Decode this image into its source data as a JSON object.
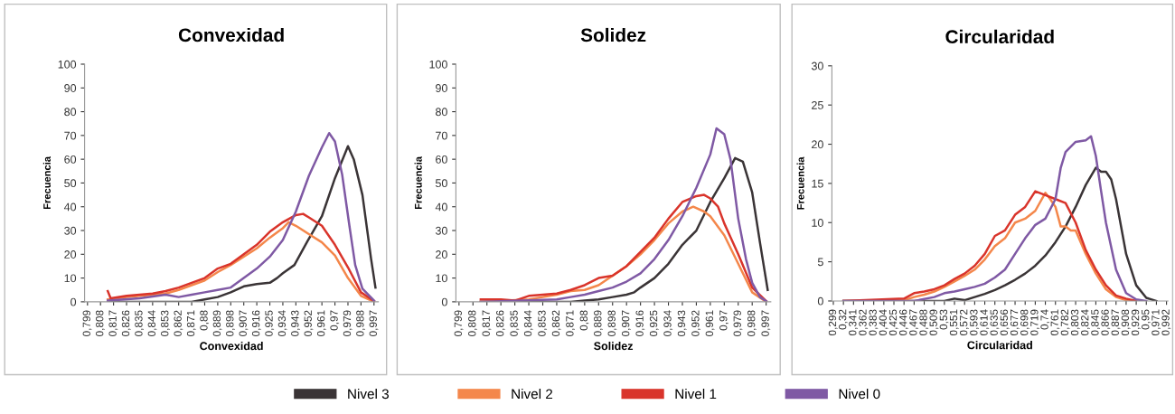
{
  "chart_data": [
    {
      "type": "line",
      "title": "Convexidad",
      "xlabel": "Convexidad",
      "ylabel": "Frecuencia",
      "legend": "bottom",
      "grid": false,
      "xlim": [
        0.797,
        1.0
      ],
      "ylim": [
        0,
        100
      ],
      "yticks": [
        0,
        10,
        20,
        30,
        40,
        50,
        60,
        70,
        80,
        90,
        100
      ],
      "xticks": [
        {
          "value": 0.799,
          "label": "0,799"
        },
        {
          "value": 0.808,
          "label": "0,808"
        },
        {
          "value": 0.817,
          "label": "0,817"
        },
        {
          "value": 0.826,
          "label": "0,826"
        },
        {
          "value": 0.835,
          "label": "0,835"
        },
        {
          "value": 0.844,
          "label": "0,844"
        },
        {
          "value": 0.853,
          "label": "0,853"
        },
        {
          "value": 0.862,
          "label": "0,862"
        },
        {
          "value": 0.871,
          "label": "0,871"
        },
        {
          "value": 0.88,
          "label": "0,88"
        },
        {
          "value": 0.889,
          "label": "0,889"
        },
        {
          "value": 0.898,
          "label": "0,898"
        },
        {
          "value": 0.907,
          "label": "0,907"
        },
        {
          "value": 0.916,
          "label": "0,916"
        },
        {
          "value": 0.925,
          "label": "0,925"
        },
        {
          "value": 0.934,
          "label": "0,934"
        },
        {
          "value": 0.943,
          "label": "0,943"
        },
        {
          "value": 0.952,
          "label": "0,952"
        },
        {
          "value": 0.961,
          "label": "0,961"
        },
        {
          "value": 0.97,
          "label": "0,97"
        },
        {
          "value": 0.979,
          "label": "0,979"
        },
        {
          "value": 0.988,
          "label": "0,988"
        },
        {
          "value": 0.997,
          "label": "0,997"
        }
      ],
      "series": [
        {
          "name": "Nivel 3",
          "color": "#3a3436",
          "x": [
            0.813,
            0.871,
            0.88,
            0.889,
            0.898,
            0.907,
            0.916,
            0.925,
            0.93,
            0.934,
            0.942,
            0.951,
            0.961,
            0.97,
            0.979,
            0.983,
            0.989,
            0.995,
            0.998
          ],
          "values": [
            0,
            0,
            1,
            2,
            4,
            6.5,
            7.5,
            8,
            10,
            12,
            15.5,
            25.5,
            36,
            52,
            65.5,
            60,
            45,
            18,
            6
          ]
        },
        {
          "name": "Nivel 2",
          "color": "#f4874b",
          "x": [
            0.813,
            0.826,
            0.835,
            0.844,
            0.853,
            0.862,
            0.871,
            0.88,
            0.889,
            0.898,
            0.907,
            0.916,
            0.925,
            0.934,
            0.938,
            0.943,
            0.952,
            0.961,
            0.97,
            0.979,
            0.988,
            0.997
          ],
          "values": [
            1,
            2,
            2.5,
            3,
            3.5,
            5,
            7,
            9,
            12.5,
            15.5,
            19,
            22.5,
            27,
            31,
            33.5,
            32,
            28.5,
            25,
            19.5,
            10,
            2.5,
            0
          ]
        },
        {
          "name": "Nivel 1",
          "color": "#d9342b",
          "x": [
            0.813,
            0.815,
            0.826,
            0.835,
            0.844,
            0.853,
            0.862,
            0.871,
            0.88,
            0.889,
            0.898,
            0.907,
            0.916,
            0.925,
            0.934,
            0.943,
            0.948,
            0.952,
            0.961,
            0.97,
            0.979,
            0.988,
            0.997
          ],
          "values": [
            4.5,
            1.5,
            2.5,
            3,
            3.5,
            4.5,
            6,
            8,
            10,
            14,
            16,
            20,
            24,
            29.5,
            33.5,
            36.5,
            37,
            35.5,
            32,
            24,
            14.5,
            4,
            0.3
          ]
        },
        {
          "name": "Nivel 0",
          "color": "#7f59a4",
          "x": [
            0.813,
            0.835,
            0.853,
            0.862,
            0.871,
            0.88,
            0.889,
            0.898,
            0.907,
            0.916,
            0.925,
            0.934,
            0.943,
            0.952,
            0.961,
            0.966,
            0.97,
            0.975,
            0.98,
            0.984,
            0.989,
            0.997
          ],
          "values": [
            0.5,
            1.5,
            3,
            2,
            3,
            4,
            5,
            6,
            10,
            14,
            19,
            26,
            38,
            53,
            65,
            71,
            67.5,
            53.5,
            32,
            15.5,
            5.5,
            0.5
          ]
        }
      ]
    },
    {
      "type": "line",
      "title": "Solidez",
      "xlabel": "Solidez",
      "ylabel": "Frecuencia",
      "grid": false,
      "xlim": [
        0.797,
        1.0
      ],
      "ylim": [
        0,
        100
      ],
      "yticks": [
        0,
        10,
        20,
        30,
        40,
        50,
        60,
        70,
        80,
        90,
        100
      ],
      "xticks": [
        {
          "value": 0.799,
          "label": "0,799"
        },
        {
          "value": 0.808,
          "label": "0,808"
        },
        {
          "value": 0.817,
          "label": "0,817"
        },
        {
          "value": 0.826,
          "label": "0,826"
        },
        {
          "value": 0.835,
          "label": "0,835"
        },
        {
          "value": 0.844,
          "label": "0,844"
        },
        {
          "value": 0.853,
          "label": "0,853"
        },
        {
          "value": 0.862,
          "label": "0,862"
        },
        {
          "value": 0.871,
          "label": "0,871"
        },
        {
          "value": 0.88,
          "label": "0,88"
        },
        {
          "value": 0.889,
          "label": "0,889"
        },
        {
          "value": 0.898,
          "label": "0,898"
        },
        {
          "value": 0.907,
          "label": "0,907"
        },
        {
          "value": 0.916,
          "label": "0,916"
        },
        {
          "value": 0.925,
          "label": "0,925"
        },
        {
          "value": 0.934,
          "label": "0,934"
        },
        {
          "value": 0.943,
          "label": "0,943"
        },
        {
          "value": 0.952,
          "label": "0,952"
        },
        {
          "value": 0.961,
          "label": "0,961"
        },
        {
          "value": 0.97,
          "label": "0,97"
        },
        {
          "value": 0.979,
          "label": "0,979"
        },
        {
          "value": 0.988,
          "label": "0,988"
        },
        {
          "value": 0.997,
          "label": "0,997"
        }
      ],
      "series": [
        {
          "color": "#3a3436",
          "x": [
            0.813,
            0.871,
            0.88,
            0.889,
            0.898,
            0.907,
            0.912,
            0.916,
            0.925,
            0.934,
            0.943,
            0.952,
            0.961,
            0.97,
            0.977,
            0.982,
            0.988,
            0.993,
            0.998
          ],
          "values": [
            0,
            0,
            0.5,
            1,
            2,
            3,
            4,
            6,
            10,
            16,
            24,
            30,
            42,
            52,
            60.5,
            59,
            46,
            25,
            5
          ]
        },
        {
          "color": "#f4874b",
          "x": [
            0.813,
            0.844,
            0.853,
            0.862,
            0.871,
            0.88,
            0.889,
            0.898,
            0.907,
            0.916,
            0.925,
            0.934,
            0.943,
            0.95,
            0.957,
            0.961,
            0.97,
            0.979,
            0.988,
            0.997
          ],
          "values": [
            0,
            1,
            2,
            3,
            4.5,
            5,
            7,
            11,
            15,
            20,
            26,
            33,
            38,
            40,
            38,
            36,
            28,
            16,
            4,
            0
          ]
        },
        {
          "color": "#d9342b",
          "x": [
            0.813,
            0.826,
            0.835,
            0.844,
            0.853,
            0.862,
            0.871,
            0.88,
            0.889,
            0.898,
            0.907,
            0.916,
            0.925,
            0.934,
            0.943,
            0.952,
            0.957,
            0.961,
            0.966,
            0.97,
            0.979,
            0.988,
            0.997
          ],
          "values": [
            1,
            1,
            0.5,
            2.5,
            3,
            3.5,
            5,
            7,
            10,
            11,
            15,
            21,
            27,
            35,
            42,
            44.5,
            45,
            43.5,
            40,
            33,
            20,
            6,
            0.3
          ]
        },
        {
          "color": "#7f59a4",
          "x": [
            0.813,
            0.862,
            0.871,
            0.88,
            0.889,
            0.898,
            0.907,
            0.916,
            0.925,
            0.934,
            0.943,
            0.952,
            0.961,
            0.965,
            0.97,
            0.974,
            0.979,
            0.984,
            0.988,
            0.993,
            0.997
          ],
          "values": [
            0,
            1,
            2,
            3,
            4.5,
            6,
            8.5,
            12,
            18,
            26,
            36,
            48,
            62,
            73,
            70.5,
            60,
            35,
            18,
            8,
            2,
            0.3
          ]
        }
      ]
    },
    {
      "type": "line",
      "title": "Circularidad",
      "xlabel": "Circularidad",
      "ylabel": "Frecuencia",
      "grid": false,
      "xlim": [
        0.296,
        0.995
      ],
      "ylim": [
        0,
        30
      ],
      "yticks": [
        0,
        5,
        10,
        15,
        20,
        25,
        30
      ],
      "xticks": [
        {
          "value": 0.299,
          "label": "0,299"
        },
        {
          "value": 0.32,
          "label": "0,32"
        },
        {
          "value": 0.341,
          "label": "0,341"
        },
        {
          "value": 0.362,
          "label": "0,362"
        },
        {
          "value": 0.383,
          "label": "0,383"
        },
        {
          "value": 0.404,
          "label": "0,404"
        },
        {
          "value": 0.425,
          "label": "0,425"
        },
        {
          "value": 0.446,
          "label": "0,446"
        },
        {
          "value": 0.467,
          "label": "0,467"
        },
        {
          "value": 0.488,
          "label": "0,488"
        },
        {
          "value": 0.509,
          "label": "0,509"
        },
        {
          "value": 0.53,
          "label": "0,53"
        },
        {
          "value": 0.551,
          "label": "0,551"
        },
        {
          "value": 0.572,
          "label": "0,572"
        },
        {
          "value": 0.593,
          "label": "0,593"
        },
        {
          "value": 0.614,
          "label": "0,614"
        },
        {
          "value": 0.635,
          "label": "0,635"
        },
        {
          "value": 0.656,
          "label": "0,656"
        },
        {
          "value": 0.677,
          "label": "0,677"
        },
        {
          "value": 0.698,
          "label": "0,698"
        },
        {
          "value": 0.719,
          "label": "0,719"
        },
        {
          "value": 0.74,
          "label": "0,74"
        },
        {
          "value": 0.761,
          "label": "0,761"
        },
        {
          "value": 0.782,
          "label": "0,782"
        },
        {
          "value": 0.803,
          "label": "0,803"
        },
        {
          "value": 0.824,
          "label": "0,824"
        },
        {
          "value": 0.845,
          "label": "0,845"
        },
        {
          "value": 0.866,
          "label": "0,866"
        },
        {
          "value": 0.887,
          "label": "0,887"
        },
        {
          "value": 0.908,
          "label": "0,908"
        },
        {
          "value": 0.929,
          "label": "0,929"
        },
        {
          "value": 0.95,
          "label": "0,95"
        },
        {
          "value": 0.971,
          "label": "0,971"
        },
        {
          "value": 0.992,
          "label": "0,992"
        }
      ],
      "series": [
        {
          "color": "#3a3436",
          "x": [
            0.32,
            0.53,
            0.551,
            0.572,
            0.593,
            0.614,
            0.635,
            0.656,
            0.677,
            0.698,
            0.719,
            0.74,
            0.761,
            0.782,
            0.803,
            0.824,
            0.845,
            0.856,
            0.866,
            0.877,
            0.887,
            0.908,
            0.929,
            0.95,
            0.971
          ],
          "values": [
            0,
            0,
            0.3,
            0.1,
            0.5,
            0.9,
            1.4,
            2,
            2.7,
            3.5,
            4.5,
            5.8,
            7.5,
            9.5,
            12,
            14.8,
            17,
            16.5,
            16.5,
            15.5,
            13,
            6,
            2,
            0.4,
            0
          ]
        },
        {
          "color": "#f4874b",
          "x": [
            0.32,
            0.446,
            0.467,
            0.488,
            0.509,
            0.53,
            0.551,
            0.572,
            0.593,
            0.614,
            0.635,
            0.656,
            0.677,
            0.698,
            0.719,
            0.74,
            0.75,
            0.761,
            0.772,
            0.782,
            0.793,
            0.803,
            0.824,
            0.845,
            0.866,
            0.887,
            0.908,
            0.929
          ],
          "values": [
            0,
            0.1,
            0.5,
            0.8,
            1.2,
            1.8,
            2.5,
            3.2,
            4,
            5.3,
            7,
            8,
            10,
            10.5,
            11.5,
            13.8,
            13,
            12,
            9.5,
            9.5,
            9,
            9,
            6,
            3.5,
            1.5,
            0.5,
            0.1,
            0
          ]
        },
        {
          "color": "#d9342b",
          "x": [
            0.32,
            0.446,
            0.467,
            0.488,
            0.509,
            0.53,
            0.551,
            0.572,
            0.593,
            0.614,
            0.635,
            0.656,
            0.677,
            0.698,
            0.719,
            0.74,
            0.761,
            0.782,
            0.803,
            0.824,
            0.845,
            0.866,
            0.887,
            0.908,
            0.929
          ],
          "values": [
            0,
            0.3,
            1,
            1.2,
            1.5,
            2,
            2.8,
            3.5,
            4.5,
            6,
            8.3,
            9,
            11,
            12,
            14,
            13.5,
            13,
            12.5,
            10,
            6.5,
            4,
            2,
            0.7,
            0.3,
            0
          ]
        },
        {
          "color": "#7f59a4",
          "x": [
            0.32,
            0.467,
            0.509,
            0.53,
            0.551,
            0.572,
            0.593,
            0.614,
            0.635,
            0.656,
            0.677,
            0.698,
            0.719,
            0.74,
            0.761,
            0.772,
            0.782,
            0.803,
            0.824,
            0.835,
            0.845,
            0.856,
            0.866,
            0.887,
            0.908,
            0.929,
            0.95
          ],
          "values": [
            0,
            0,
            0.5,
            1,
            1.2,
            1.5,
            1.8,
            2.2,
            3,
            4,
            6,
            8,
            9.7,
            10.5,
            13,
            17,
            19,
            20.3,
            20.5,
            21,
            18.5,
            14,
            10,
            4,
            1,
            0.2,
            0
          ]
        }
      ]
    }
  ]
}
